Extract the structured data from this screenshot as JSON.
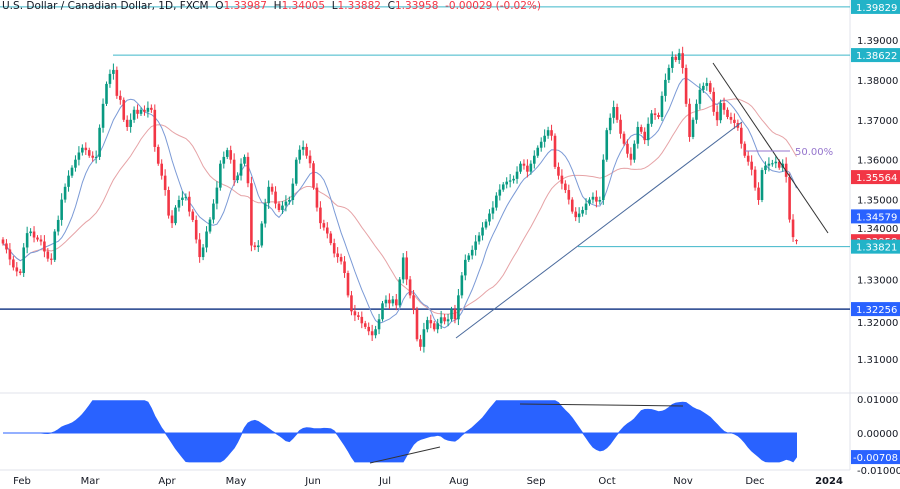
{
  "header": {
    "symbol": "U.S. Dollar / Canadian Dollar, 1D, FXCM",
    "o_label": "O",
    "o": "1.33987",
    "h_label": "H",
    "h": "1.34005",
    "l_label": "L",
    "l": "1.33882",
    "c_label": "C",
    "c": "1.33958",
    "change": "-0.00029 (-0.02%)"
  },
  "colors": {
    "up": "#089981",
    "down": "#f23645",
    "fast_ma": "#7b9ad6",
    "slow_ma": "#e6a3a6",
    "level": "#3fb6c9",
    "support": "#1e3f8a",
    "oscillator": "#2962ff",
    "fib": "#9575cd"
  },
  "price_axis": {
    "ticks": [
      "1.39000",
      "1.38000",
      "1.37000",
      "1.36000",
      "1.35000",
      "1.34000",
      "1.33000",
      "1.32000",
      "1.31000"
    ],
    "tick_values": [
      1.39,
      1.38,
      1.37,
      1.36,
      1.35,
      1.34,
      1.33,
      1.32,
      1.31
    ]
  },
  "price_tags": [
    {
      "text": "1.39829",
      "value": 1.39829,
      "color": "#22b3c8"
    },
    {
      "text": "1.38622",
      "value": 1.38622,
      "color": "#22b3c8"
    },
    {
      "text": "1.35564",
      "value": 1.35564,
      "color": "#f23645"
    },
    {
      "text": "1.34579",
      "value": 1.34579,
      "color": "#2962ff"
    },
    {
      "text": "1.33958",
      "value": 1.33958,
      "color": "#f23645"
    },
    {
      "text": "1.33821",
      "value": 1.33821,
      "color": "#22b3c8"
    },
    {
      "text": "1.32256",
      "value": 1.32256,
      "color": "#2962ff"
    }
  ],
  "fib_label": "50.00%",
  "oscillator_axis": {
    "ticks": [
      "0.01000",
      "0.00000",
      "-0.01000"
    ],
    "tick_values": [
      0.01,
      0,
      -0.01
    ],
    "current": "-0.00708",
    "current_value": -0.00708
  },
  "time_axis": [
    "Feb",
    "Mar",
    "Apr",
    "May",
    "Jun",
    "Jul",
    "Aug",
    "Sep",
    "Oct",
    "Nov",
    "Dec",
    "2024"
  ],
  "chart_data": {
    "type": "candlestick",
    "title": "U.S. Dollar / Canadian Dollar, 1D, FXCM",
    "ylim": [
      1.305,
      1.399
    ],
    "closes": [
      1.339,
      1.3375,
      1.335,
      1.333,
      1.332,
      1.3316,
      1.338,
      1.3416,
      1.342,
      1.3405,
      1.34,
      1.3395,
      1.337,
      1.3352,
      1.3349,
      1.342,
      1.3449,
      1.35,
      1.3532,
      1.356,
      1.358,
      1.36,
      1.3618,
      1.363,
      1.3624,
      1.361,
      1.3605,
      1.3607,
      1.368,
      1.374,
      1.379,
      1.3815,
      1.3825,
      1.376,
      1.375,
      1.37,
      1.3682,
      1.37,
      1.3725,
      1.3715,
      1.3725,
      1.372,
      1.373,
      1.3725,
      1.3632,
      1.359,
      1.356,
      1.3524,
      1.346,
      1.3441,
      1.348,
      1.3499,
      1.3505,
      1.3507,
      1.347,
      1.3449,
      1.34,
      1.3356,
      1.338,
      1.342,
      1.345,
      1.349,
      1.353,
      1.359,
      1.3607,
      1.3624,
      1.36,
      1.3549,
      1.356,
      1.359,
      1.3607,
      1.3541,
      1.3385,
      1.3381,
      1.3385,
      1.344,
      1.3491,
      1.3532,
      1.352,
      1.349,
      1.3474,
      1.3485,
      1.3495,
      1.3499,
      1.354,
      1.36,
      1.3625,
      1.3632,
      1.361,
      1.3591,
      1.353,
      1.348,
      1.3441,
      1.343,
      1.3415,
      1.3391,
      1.3365,
      1.3356,
      1.3345,
      1.3316,
      1.326,
      1.322,
      1.321,
      1.3206,
      1.319,
      1.3181,
      1.317,
      1.316,
      1.3175,
      1.32,
      1.324,
      1.3249,
      1.324,
      1.325,
      1.3235,
      1.33,
      1.3355,
      1.33,
      1.326,
      1.3225,
      1.315,
      1.3131,
      1.3175,
      1.3198,
      1.319,
      1.3175,
      1.319,
      1.3205,
      1.3195,
      1.32,
      1.3225,
      1.32,
      1.326,
      1.331,
      1.3349,
      1.336,
      1.3374,
      1.3395,
      1.341,
      1.343,
      1.3445,
      1.3465,
      1.348,
      1.351,
      1.3525,
      1.3538,
      1.3545,
      1.3548,
      1.3552,
      1.357,
      1.359,
      1.3585,
      1.357,
      1.359,
      1.361,
      1.363,
      1.3645,
      1.366,
      1.3674,
      1.366,
      1.3582,
      1.356,
      1.354,
      1.3524,
      1.35,
      1.347,
      1.3456,
      1.3465,
      1.3474,
      1.349,
      1.35,
      1.3507,
      1.3495,
      1.3499,
      1.36,
      1.3674,
      1.3705,
      1.3732,
      1.37,
      1.3665,
      1.364,
      1.3615,
      1.36,
      1.364,
      1.3682,
      1.367,
      1.3649,
      1.369,
      1.3716,
      1.3712,
      1.3707,
      1.376,
      1.38,
      1.383,
      1.3858,
      1.385,
      1.3867,
      1.383,
      1.374,
      1.3657,
      1.37,
      1.374,
      1.3775,
      1.3785,
      1.3792,
      1.377,
      1.372,
      1.3699,
      1.3742,
      1.3725,
      1.3707,
      1.37,
      1.3692,
      1.368,
      1.364,
      1.361,
      1.3595,
      1.3575,
      1.353,
      1.3499,
      1.3574,
      1.3585,
      1.359,
      1.3591,
      1.3595,
      1.358,
      1.359,
      1.3557,
      1.345,
      1.3406,
      1.33987
    ],
    "last_candle": {
      "open": 1.33987,
      "high": 1.34005,
      "low": 1.33882,
      "close": 1.33958
    },
    "levels": [
      1.39829,
      1.38622,
      1.33821,
      1.32256
    ],
    "legend": "none",
    "grid": false
  }
}
